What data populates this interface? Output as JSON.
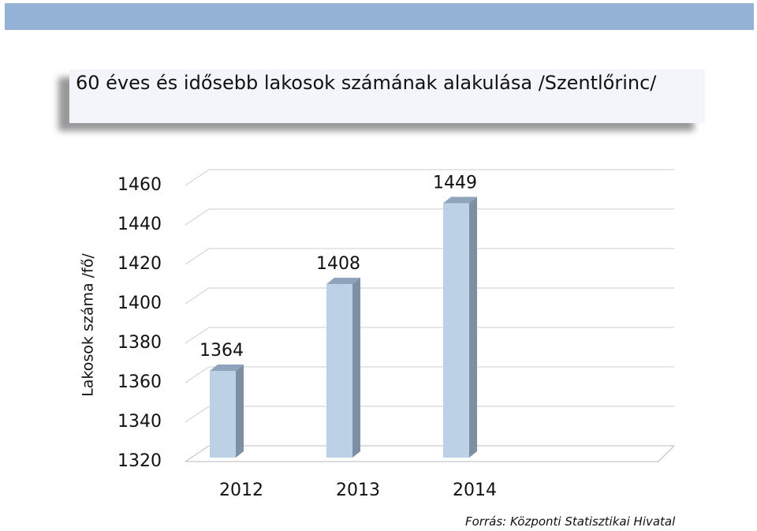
{
  "chart_data": {
    "type": "bar3d",
    "title": "60 éves és idősebb lakosok számának alakulása /Szentlőrinc/",
    "y_label": "Lakosok száma /fő/",
    "source": "Forrás: Központi Statisztikai Hivatal",
    "categories": [
      "2012",
      "2013",
      "2014"
    ],
    "values": [
      1364,
      1408,
      1449
    ],
    "color": "#bcd0e6",
    "ylim": [
      1320,
      1460
    ],
    "yticks": [
      1320,
      1340,
      1360,
      1380,
      1400,
      1420,
      1440,
      1460
    ],
    "grid": true
  }
}
